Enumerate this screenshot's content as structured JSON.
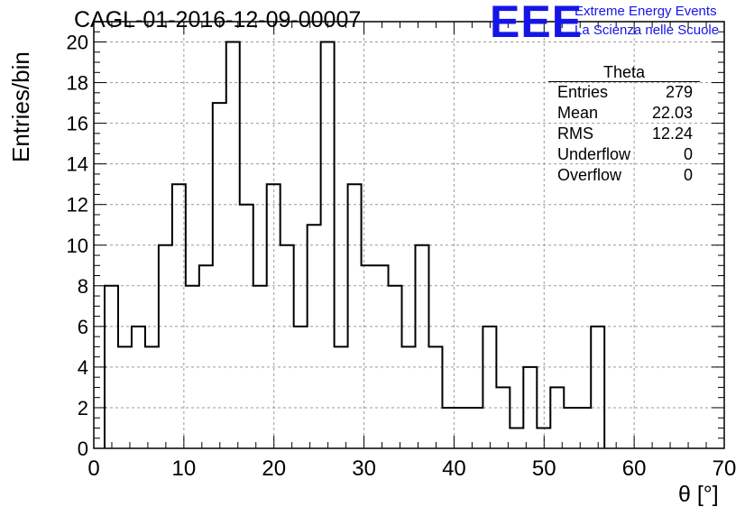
{
  "header": {
    "title": "CAGL-01-2016-12-09-00007",
    "logo_text": "EEE",
    "logo_line1": "Extreme Energy Events",
    "logo_line2": "La Scienza nelle Scuole",
    "logo_color": "#1515e8"
  },
  "stats": {
    "title": "Theta",
    "rows": [
      {
        "label": "Entries",
        "value": "279"
      },
      {
        "label": "Mean",
        "value": "22.03"
      },
      {
        "label": "RMS",
        "value": "12.24"
      },
      {
        "label": "Underflow",
        "value": "0"
      },
      {
        "label": "Overflow",
        "value": "0"
      }
    ]
  },
  "chart_data": {
    "type": "bar",
    "style": "step-histogram",
    "title": "CAGL-01-2016-12-09-00007",
    "xlabel": "θ [°]",
    "ylabel": "Entries/bin",
    "xlim": [
      0,
      70
    ],
    "ylim": [
      0,
      21
    ],
    "grid": true,
    "legend": "top-right",
    "x_ticks": [
      0,
      10,
      20,
      30,
      40,
      50,
      60,
      70
    ],
    "y_ticks": [
      0,
      2,
      4,
      6,
      8,
      10,
      12,
      14,
      16,
      18,
      20
    ],
    "bin_width": 1.5,
    "bins_start": 1.2,
    "values": [
      8,
      5,
      6,
      5,
      10,
      13,
      8,
      9,
      17,
      20,
      12,
      8,
      13,
      10,
      6,
      11,
      20,
      5,
      13,
      9,
      9,
      8,
      5,
      10,
      5,
      2,
      2,
      2,
      6,
      3,
      1,
      4,
      1,
      3,
      2,
      2,
      6
    ]
  }
}
